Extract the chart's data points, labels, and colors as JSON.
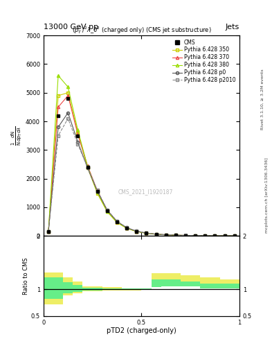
{
  "title_top_left": "13000 GeV pp",
  "title_top_right": "Jets",
  "plot_title": "$(p_T^D)^2\\lambda\\_0^2$ (charged only) (CMS jet substructure)",
  "cms_label": "CMS_2021_I1920187",
  "rivet_label": "Rivet 3.1.10, ≥ 3.2M events",
  "arxiv_label": "mcplots.cern.ch [arXiv:1306.3436]",
  "xlabel": "pTD2 (charged-only)",
  "xlim": [
    0,
    1
  ],
  "ylim_main": [
    0,
    7000
  ],
  "ylim_ratio": [
    0.5,
    2.0
  ],
  "yticks_main": [
    0,
    1000,
    2000,
    3000,
    4000,
    5000,
    6000,
    7000
  ],
  "ytick_labels_main": [
    "0",
    "1000",
    "2000",
    "3000",
    "4000",
    "5000",
    "6000",
    "7000"
  ],
  "yticks_ratio": [
    0.5,
    1.0,
    2.0
  ],
  "ytick_labels_ratio": [
    "0.5",
    "1",
    "2"
  ],
  "x_data": [
    0.025,
    0.075,
    0.125,
    0.175,
    0.225,
    0.275,
    0.325,
    0.375,
    0.425,
    0.475,
    0.525,
    0.575,
    0.625,
    0.675,
    0.725,
    0.775,
    0.825,
    0.875,
    0.925,
    0.975
  ],
  "cms_y": [
    150,
    4200,
    4800,
    3500,
    2400,
    1550,
    880,
    490,
    270,
    155,
    92,
    55,
    36,
    22,
    13,
    9,
    6,
    4,
    2,
    1
  ],
  "py350_y": [
    150,
    4900,
    5000,
    3600,
    2380,
    1480,
    840,
    465,
    260,
    150,
    88,
    52,
    33,
    20,
    12,
    8,
    5,
    3,
    2,
    1
  ],
  "py370_y": [
    150,
    4500,
    4900,
    3550,
    2450,
    1570,
    890,
    498,
    275,
    158,
    94,
    56,
    36,
    22,
    13,
    9,
    6,
    4,
    2,
    1
  ],
  "py380_y": [
    150,
    5600,
    5200,
    3700,
    2420,
    1520,
    860,
    478,
    268,
    154,
    91,
    54,
    34,
    21,
    13,
    8,
    5,
    3,
    2,
    1
  ],
  "pyp0_y": [
    150,
    3800,
    4300,
    3280,
    2370,
    1560,
    895,
    505,
    282,
    162,
    97,
    58,
    37,
    23,
    14,
    9,
    6,
    4,
    2,
    1
  ],
  "pyp2010_y": [
    150,
    3500,
    4100,
    3200,
    2390,
    1590,
    910,
    515,
    288,
    166,
    99,
    60,
    38,
    24,
    15,
    10,
    6,
    4,
    2,
    1
  ],
  "ratio_edges": [
    0.0,
    0.05,
    0.1,
    0.15,
    0.2,
    0.3,
    0.4,
    0.5,
    0.55,
    0.6,
    0.7,
    0.8,
    0.9,
    1.0
  ],
  "ratio_yellow_lo": [
    0.72,
    0.72,
    0.88,
    0.92,
    0.96,
    0.97,
    0.98,
    0.99,
    1.08,
    1.1,
    1.1,
    1.05,
    1.05
  ],
  "ratio_yellow_hi": [
    1.32,
    1.32,
    1.22,
    1.14,
    1.06,
    1.04,
    1.02,
    1.02,
    1.3,
    1.3,
    1.26,
    1.22,
    1.18
  ],
  "ratio_green_lo": [
    0.82,
    0.82,
    0.93,
    0.95,
    0.98,
    0.985,
    0.99,
    0.995,
    1.04,
    1.05,
    1.05,
    1.02,
    1.02
  ],
  "ratio_green_hi": [
    1.22,
    1.22,
    1.13,
    1.08,
    1.025,
    1.015,
    1.01,
    1.01,
    1.18,
    1.18,
    1.14,
    1.1,
    1.1
  ],
  "color_cms": "#000000",
  "color_350": "#cccc00",
  "color_370": "#ee4444",
  "color_380": "#99dd00",
  "color_p0": "#555555",
  "color_p2010": "#888888",
  "color_yellow": "#eeee66",
  "color_green": "#66ee88",
  "bg_color": "#ffffff"
}
